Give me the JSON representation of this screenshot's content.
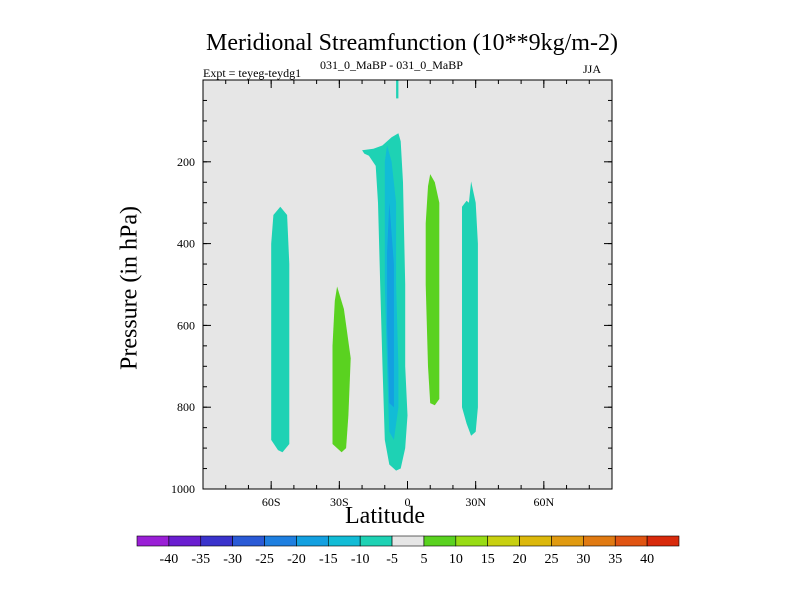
{
  "chart_data": {
    "type": "contour",
    "title": "Meridional Streamfunction (10**9kg/m-2)",
    "left_label": "Expt = teyeg-teydg1",
    "case_label": "031_0_MaBP - 031_0_MaBP",
    "season": "JJA",
    "xlabel": "Latitude",
    "ylabel": "Pressure (in hPa)",
    "xlim": [
      -90,
      90
    ],
    "ylim": [
      1000,
      0
    ],
    "x_ticks": [
      {
        "value": -60,
        "label": "60S"
      },
      {
        "value": -30,
        "label": "30S"
      },
      {
        "value": 0,
        "label": "0"
      },
      {
        "value": 30,
        "label": "30N"
      },
      {
        "value": 60,
        "label": "60N"
      }
    ],
    "y_ticks": [
      {
        "value": 200,
        "label": "200"
      },
      {
        "value": 400,
        "label": "400"
      },
      {
        "value": 600,
        "label": "600"
      },
      {
        "value": 800,
        "label": "800"
      },
      {
        "value": 1000,
        "label": "1000"
      }
    ],
    "y_minor_step": 50,
    "x_minor_step": 10,
    "background_color": "#e6e6e6",
    "colorbar": {
      "levels": [
        -40,
        -35,
        -30,
        -25,
        -20,
        -15,
        -10,
        -5,
        5,
        10,
        15,
        20,
        25,
        30,
        35,
        40
      ],
      "colors": [
        "#9a1fd6",
        "#6a1ed0",
        "#3a33cc",
        "#2a5ad6",
        "#1e7fe0",
        "#13a0e0",
        "#12bcd6",
        "#1ed2b4",
        "#e6e6e6",
        "#5ad220",
        "#98dc14",
        "#c8d010",
        "#dcb80c",
        "#e09a10",
        "#e07a12",
        "#e05412",
        "#d82a0c"
      ]
    },
    "regions": [
      {
        "name": "sh-mid-cell",
        "value": "-5 to -10",
        "color": "#1ed2b4",
        "points": [
          [
            -56,
            310
          ],
          [
            -53,
            330
          ],
          [
            -52,
            450
          ],
          [
            -52,
            700
          ],
          [
            -52,
            890
          ],
          [
            -55,
            910
          ],
          [
            -57,
            905
          ],
          [
            -60,
            880
          ],
          [
            -60,
            600
          ],
          [
            -60,
            400
          ],
          [
            -59,
            330
          ]
        ]
      },
      {
        "name": "sh-subtropical-cell",
        "value": "5 to 10",
        "color": "#5ad220",
        "points": [
          [
            -31,
            505
          ],
          [
            -28,
            560
          ],
          [
            -25,
            680
          ],
          [
            -26,
            820
          ],
          [
            -27,
            900
          ],
          [
            -29,
            910
          ],
          [
            -33,
            890
          ],
          [
            -33,
            800
          ],
          [
            -33,
            650
          ],
          [
            -32,
            540
          ]
        ]
      },
      {
        "name": "hadley-cell-outer",
        "value": "-5 to -10",
        "color": "#1ed2b4",
        "points": [
          [
            -20,
            172
          ],
          [
            -15,
            168
          ],
          [
            -11,
            160
          ],
          [
            -7,
            140
          ],
          [
            -4,
            130
          ],
          [
            -3,
            150
          ],
          [
            -2,
            250
          ],
          [
            -1,
            500
          ],
          [
            -1,
            700
          ],
          [
            0,
            820
          ],
          [
            -1,
            900
          ],
          [
            -3,
            950
          ],
          [
            -5,
            955
          ],
          [
            -8,
            940
          ],
          [
            -10,
            880
          ],
          [
            -11,
            700
          ],
          [
            -12,
            500
          ],
          [
            -13,
            300
          ],
          [
            -14,
            210
          ],
          [
            -17,
            185
          ],
          [
            -19,
            180
          ]
        ]
      },
      {
        "name": "hadley-cell-core",
        "value": "-10 to -15",
        "color": "#12bcd6",
        "points": [
          [
            -9,
            160
          ],
          [
            -7,
            200
          ],
          [
            -5,
            300
          ],
          [
            -5,
            500
          ],
          [
            -4,
            700
          ],
          [
            -4,
            800
          ],
          [
            -6,
            880
          ],
          [
            -8,
            860
          ],
          [
            -9,
            700
          ],
          [
            -10,
            500
          ],
          [
            -10,
            300
          ],
          [
            -10,
            200
          ]
        ]
      },
      {
        "name": "hadley-cell-max",
        "value": "-15 to -20",
        "color": "#13a0e0",
        "points": [
          [
            -8,
            300
          ],
          [
            -6,
            450
          ],
          [
            -6,
            650
          ],
          [
            -6,
            800
          ],
          [
            -8,
            790
          ],
          [
            -9,
            600
          ],
          [
            -9,
            420
          ]
        ]
      },
      {
        "name": "nh-tropical-cell",
        "value": "5 to 10",
        "color": "#5ad220",
        "points": [
          [
            10,
            230
          ],
          [
            12,
            250
          ],
          [
            14,
            300
          ],
          [
            14,
            500
          ],
          [
            14,
            700
          ],
          [
            14,
            780
          ],
          [
            12,
            795
          ],
          [
            10,
            790
          ],
          [
            9,
            700
          ],
          [
            8,
            500
          ],
          [
            8,
            350
          ],
          [
            9,
            260
          ]
        ]
      },
      {
        "name": "nh-subtropical-cell",
        "value": "-5 to -10",
        "color": "#1ed2b4",
        "points": [
          [
            28,
            248
          ],
          [
            30,
            300
          ],
          [
            31,
            400
          ],
          [
            31,
            600
          ],
          [
            31,
            800
          ],
          [
            30,
            860
          ],
          [
            28,
            870
          ],
          [
            26,
            840
          ],
          [
            24,
            800
          ],
          [
            24,
            600
          ],
          [
            24,
            400
          ],
          [
            24,
            310
          ],
          [
            26,
            295
          ],
          [
            27,
            300
          ]
        ]
      },
      {
        "name": "stratosphere-streak",
        "value": "-5 to -10",
        "color": "#1ed2b4",
        "points": [
          [
            -5,
            0
          ],
          [
            -4,
            0
          ],
          [
            -4,
            45
          ],
          [
            -5,
            45
          ]
        ]
      }
    ]
  }
}
